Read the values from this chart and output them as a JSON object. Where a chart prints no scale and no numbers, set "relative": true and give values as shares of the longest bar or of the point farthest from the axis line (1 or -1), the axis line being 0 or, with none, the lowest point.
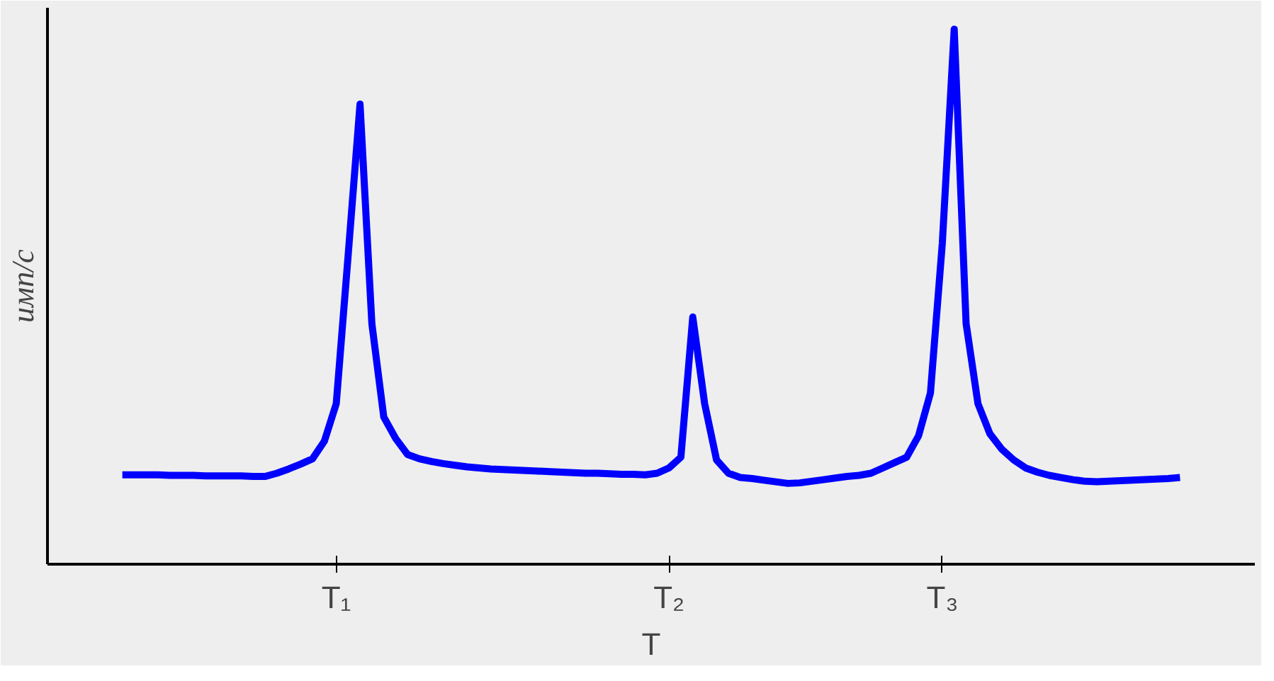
{
  "chart_data": {
    "type": "line",
    "relative": true,
    "xlabel": "T",
    "ylabel": "имп/с",
    "grid": false,
    "categories": [
      null,
      null,
      null,
      null,
      null,
      null,
      null,
      null,
      null,
      null,
      null,
      null,
      null,
      null,
      null,
      null,
      null,
      null,
      "T₁",
      null,
      null,
      null,
      null,
      null,
      null,
      null,
      null,
      null,
      null,
      null,
      null,
      null,
      null,
      null,
      null,
      null,
      null,
      null,
      null,
      null,
      null,
      null,
      null,
      null,
      null,
      null,
      "T₂",
      null,
      null,
      null,
      null,
      null,
      null,
      null,
      null,
      null,
      null,
      null,
      null,
      null,
      null,
      null,
      null,
      null,
      null,
      null,
      null,
      null,
      null,
      "T₃",
      null,
      null,
      null,
      null,
      null,
      null,
      null,
      null,
      null,
      null,
      null,
      null,
      null,
      null,
      null,
      null,
      null,
      null,
      null,
      null
    ],
    "series": [
      {
        "color": "#0000ff",
        "values": [
          0.167,
          0.167,
          0.167,
          0.167,
          0.166,
          0.166,
          0.166,
          0.165,
          0.165,
          0.165,
          0.165,
          0.164,
          0.164,
          0.17,
          0.178,
          0.187,
          0.197,
          0.23,
          0.3,
          0.577,
          0.86,
          0.449,
          0.275,
          0.235,
          0.205,
          0.197,
          0.192,
          0.188,
          0.185,
          0.182,
          0.18,
          0.178,
          0.177,
          0.176,
          0.175,
          0.174,
          0.173,
          0.172,
          0.171,
          0.17,
          0.17,
          0.169,
          0.168,
          0.168,
          0.167,
          0.17,
          0.18,
          0.2,
          0.462,
          0.3,
          0.195,
          0.17,
          0.162,
          0.16,
          0.157,
          0.154,
          0.151,
          0.152,
          0.155,
          0.158,
          0.161,
          0.164,
          0.166,
          0.17,
          0.18,
          0.19,
          0.2,
          0.24,
          0.32,
          0.6,
          1.0,
          0.45,
          0.3,
          0.244,
          0.215,
          0.195,
          0.18,
          0.172,
          0.166,
          0.162,
          0.158,
          0.155,
          0.154,
          0.155,
          0.156,
          0.157,
          0.158,
          0.159,
          0.16,
          0.162
        ]
      }
    ]
  }
}
